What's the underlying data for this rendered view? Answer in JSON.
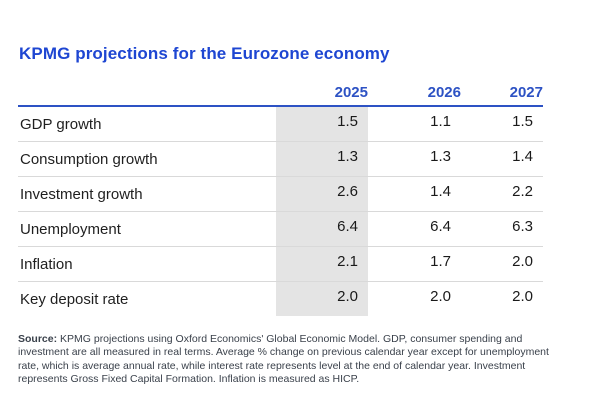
{
  "title": "KPMG projections for the Eurozone economy",
  "table": {
    "years": [
      "2025",
      "2026",
      "2027"
    ],
    "highlighted_year": "2025",
    "rows": [
      {
        "label": "GDP growth",
        "values": [
          "1.5",
          "1.1",
          "1.5"
        ]
      },
      {
        "label": "Consumption growth",
        "values": [
          "1.3",
          "1.3",
          "1.4"
        ]
      },
      {
        "label": "Investment growth",
        "values": [
          "2.6",
          "1.4",
          "2.2"
        ]
      },
      {
        "label": "Unemployment",
        "values": [
          "6.4",
          "6.4",
          "6.3"
        ]
      },
      {
        "label": "Inflation",
        "values": [
          "2.1",
          "1.7",
          "2.0"
        ]
      },
      {
        "label": "Key deposit rate",
        "values": [
          "2.0",
          "2.0",
          "2.0"
        ]
      }
    ]
  },
  "footnote": {
    "source_label": "Source:",
    "text": " KPMG projections using Oxford Economics' Global Economic Model. GDP, consumer spending and investment are all measured in real terms. Average % change on previous calendar year except for unemployment rate, which is average annual rate, while interest rate represents level at the end of calendar year. Investment represents Gross Fixed Capital Formation. Inflation is measured as HICP."
  },
  "colors": {
    "title_blue": "#1e46d2",
    "header_blue": "#2d52c4",
    "highlight_grey": "#e4e4e4",
    "separator_grey": "#d9d9d9",
    "body_text": "#1f1f1f",
    "footnote_text": "#3a414b"
  },
  "chart_data": {
    "type": "table",
    "title": "KPMG projections for the Eurozone economy",
    "columns": [
      "",
      "2025",
      "2026",
      "2027"
    ],
    "rows": [
      [
        "GDP growth",
        1.5,
        1.1,
        1.5
      ],
      [
        "Consumption growth",
        1.3,
        1.3,
        1.4
      ],
      [
        "Investment growth",
        2.6,
        1.4,
        2.2
      ],
      [
        "Unemployment",
        6.4,
        6.4,
        6.3
      ],
      [
        "Inflation",
        2.1,
        1.7,
        2.0
      ],
      [
        "Key deposit rate",
        2.0,
        2.0,
        2.0
      ]
    ],
    "highlighted_column": "2025",
    "source": "KPMG projections using Oxford Economics' Global Economic Model. GDP, consumer spending and investment are all measured in real terms. Average % change on previous calendar year except for unemployment rate, which is average annual rate, while interest rate represents level at the end of calendar year. Investment represents Gross Fixed Capital Formation. Inflation is measured as HICP."
  }
}
